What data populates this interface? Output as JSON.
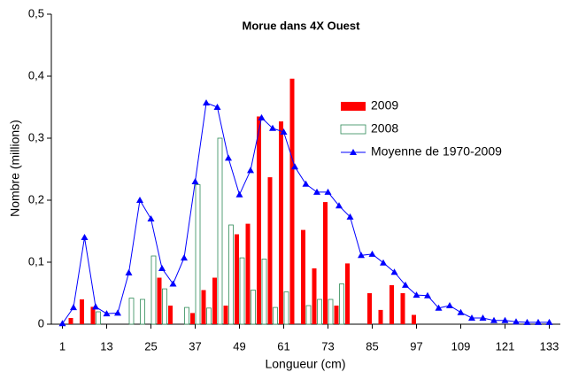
{
  "chart_data": {
    "type": "bar_line",
    "title": "Morue dans 4X Ouest",
    "x_label": "Longueur (cm)",
    "y_label": "Nombre (millions)",
    "x": [
      1,
      4,
      7,
      10,
      13,
      16,
      19,
      22,
      25,
      28,
      31,
      34,
      37,
      40,
      43,
      46,
      49,
      52,
      55,
      58,
      61,
      64,
      67,
      70,
      73,
      76,
      79,
      82,
      85,
      88,
      91,
      94,
      97,
      100,
      103,
      106,
      109,
      112,
      115,
      118,
      121,
      124,
      127,
      130,
      133
    ],
    "series": [
      {
        "name": "2009",
        "type": "bar",
        "color": "#ff0000",
        "fill": true,
        "values": [
          0,
          0.01,
          0.04,
          0.028,
          0,
          0,
          0,
          0,
          0,
          0.075,
          0.03,
          0,
          0.018,
          0.055,
          0.075,
          0.03,
          0.145,
          0.162,
          0.335,
          0.237,
          0.327,
          0.396,
          0.152,
          0.09,
          0.197,
          0.03,
          0.098,
          0,
          0.05,
          0.023,
          0.063,
          0.05,
          0.015,
          0,
          0,
          0,
          0,
          0,
          0,
          0,
          0,
          0,
          0,
          0,
          0
        ]
      },
      {
        "name": "2008",
        "type": "bar",
        "color": "#2e8b57",
        "fill": false,
        "values": [
          0,
          0,
          0,
          0.02,
          0,
          0,
          0.042,
          0.04,
          0.11,
          0.057,
          0,
          0.027,
          0.225,
          0.026,
          0.3,
          0.16,
          0.107,
          0.055,
          0.105,
          0.027,
          0.052,
          0,
          0.03,
          0.04,
          0.04,
          0.065,
          0,
          0,
          0,
          0,
          0,
          0,
          0,
          0,
          0,
          0,
          0,
          0,
          0,
          0,
          0,
          0,
          0,
          0,
          0
        ]
      },
      {
        "name": "Moyenne de 1970-2009",
        "type": "line",
        "color": "#0000ff",
        "values": [
          0.001,
          0.027,
          0.14,
          0.028,
          0.017,
          0.018,
          0.083,
          0.2,
          0.17,
          0.09,
          0.065,
          0.107,
          0.23,
          0.357,
          0.35,
          0.268,
          0.209,
          0.248,
          0.333,
          0.316,
          0.31,
          0.254,
          0.226,
          0.213,
          0.213,
          0.191,
          0.173,
          0.111,
          0.113,
          0.099,
          0.084,
          0.063,
          0.047,
          0.046,
          0.026,
          0.03,
          0.019,
          0.01,
          0.01,
          0.006,
          0.006,
          0.004,
          0.003,
          0.003,
          0.003
        ]
      }
    ],
    "xlim": [
      -2,
      136
    ],
    "xticks": [
      1,
      13,
      25,
      37,
      49,
      61,
      73,
      85,
      97,
      109,
      121,
      133
    ],
    "ylim": [
      0,
      0.5
    ],
    "yticks": [
      0,
      {
        "value": 0.1,
        "label": "0,1"
      },
      {
        "value": 0.2,
        "label": "0,2"
      },
      {
        "value": 0.3,
        "label": "0,3"
      },
      {
        "value": 0.4,
        "label": "0,4"
      },
      {
        "value": 0.5,
        "label": "0,5"
      }
    ]
  }
}
